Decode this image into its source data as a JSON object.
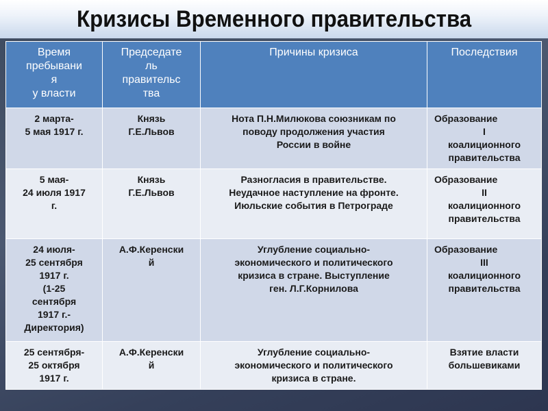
{
  "title": "Кризисы Временного правительства",
  "table": {
    "headers": [
      "Время\nпребывани\nя\nу власти",
      "Председате\nль\nправительс\nтва",
      "Причины кризиса",
      "Последствия"
    ],
    "rows": [
      {
        "period": "2 марта-\n5 мая 1917 г.",
        "chairman": "Князь\nГ.Е.Львов",
        "causes": "Нота П.Н.Милюкова союзникам по\nповоду продолжения участия\nРоссии в войне",
        "result_first": "Образование",
        "result_rest": "I\nкоалиционного\nправительства"
      },
      {
        "period": "5 мая-\n24 июля 1917\nг.",
        "chairman": "Князь\nГ.Е.Львов",
        "causes": "Разногласия в правительстве.\nНеудачное наступление на фронте.\nИюльские события в Петрограде",
        "result_first": "Образование",
        "result_rest": "II\nкоалиционного\nправительства"
      },
      {
        "period": "24 июля-\n25 сентября\n1917 г.\n(1-25\nсентября\n1917 г.-\nДиректория)",
        "chairman": "А.Ф.Керенски\nй",
        "causes": "Углубление социально-\nэкономического и политического\nкризиса в стране. Выступление\nген. Л.Г.Корнилова",
        "result_first": "Образование",
        "result_rest": "III\nкоалиционного\nправительства"
      },
      {
        "period": "25 сентября-\n25 октября\n1917 г.",
        "chairman": "А.Ф.Керенски\nй",
        "causes": "Углубление социально-\nэкономического и политического\nкризиса в стране.",
        "result_first": "",
        "result_rest": "Взятие власти\nбольшевиками"
      }
    ]
  },
  "colors": {
    "header": "#4f81bd",
    "row_dark": "#d0d8e8",
    "row_light": "#e9edf4"
  }
}
